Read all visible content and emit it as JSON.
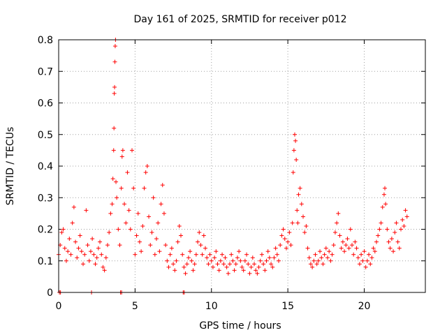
{
  "chart_data": {
    "type": "scatter",
    "title": "Day 161 of 2025, SRMTID for receiver p012",
    "xlabel": "GPS time / hours",
    "ylabel": "SRMTID / TECUs",
    "xlim": [
      0,
      24
    ],
    "ylim": [
      0,
      0.8
    ],
    "xticks": [
      "0",
      "5",
      "10",
      "15",
      "20"
    ],
    "xtick_values": [
      0,
      5,
      10,
      15,
      20
    ],
    "yticks": [
      "0",
      "0.1",
      "0.2",
      "0.3",
      "0.4",
      "0.5",
      "0.6",
      "0.7",
      "0.8"
    ],
    "ytick_values": [
      0,
      0.1,
      0.2,
      0.3,
      0.4,
      0.5,
      0.6,
      0.7,
      0.8
    ],
    "grid": true,
    "marker": "+",
    "series_color": "#ff0000",
    "series": [
      {
        "name": "SRMTID",
        "points": [
          [
            0.0,
            0.12
          ],
          [
            0.1,
            0.15
          ],
          [
            0.2,
            0.19
          ],
          [
            0.3,
            0.2
          ],
          [
            0.4,
            0.14
          ],
          [
            0.5,
            0.1
          ],
          [
            0.6,
            0.13
          ],
          [
            0.7,
            0.17
          ],
          [
            0.8,
            0.12
          ],
          [
            0.9,
            0.22
          ],
          [
            1.0,
            0.27
          ],
          [
            1.1,
            0.16
          ],
          [
            1.2,
            0.11
          ],
          [
            1.3,
            0.14
          ],
          [
            1.4,
            0.18
          ],
          [
            1.5,
            0.13
          ],
          [
            1.6,
            0.09
          ],
          [
            1.7,
            0.12
          ],
          [
            1.8,
            0.26
          ],
          [
            1.9,
            0.15
          ],
          [
            2.0,
            0.1
          ],
          [
            2.1,
            0.13
          ],
          [
            2.2,
            0.17
          ],
          [
            2.3,
            0.12
          ],
          [
            2.4,
            0.09
          ],
          [
            2.5,
            0.11
          ],
          [
            2.6,
            0.14
          ],
          [
            2.7,
            0.16
          ],
          [
            2.8,
            0.12
          ],
          [
            2.9,
            0.08
          ],
          [
            3.0,
            0.07
          ],
          [
            3.1,
            0.11
          ],
          [
            3.2,
            0.15
          ],
          [
            3.3,
            0.19
          ],
          [
            3.4,
            0.25
          ],
          [
            3.5,
            0.28
          ],
          [
            3.55,
            0.36
          ],
          [
            3.6,
            0.45
          ],
          [
            3.62,
            0.52
          ],
          [
            3.64,
            0.63
          ],
          [
            3.66,
            0.65
          ],
          [
            3.68,
            0.73
          ],
          [
            3.7,
            0.78
          ],
          [
            3.72,
            0.8
          ],
          [
            3.75,
            0.35
          ],
          [
            3.8,
            0.3
          ],
          [
            3.9,
            0.2
          ],
          [
            4.0,
            0.15
          ],
          [
            4.1,
            0.33
          ],
          [
            4.15,
            0.43
          ],
          [
            4.2,
            0.45
          ],
          [
            4.3,
            0.28
          ],
          [
            4.4,
            0.22
          ],
          [
            4.5,
            0.38
          ],
          [
            4.6,
            0.26
          ],
          [
            4.7,
            0.2
          ],
          [
            4.8,
            0.45
          ],
          [
            4.9,
            0.33
          ],
          [
            5.0,
            0.12
          ],
          [
            5.1,
            0.18
          ],
          [
            5.2,
            0.25
          ],
          [
            5.3,
            0.16
          ],
          [
            5.4,
            0.13
          ],
          [
            5.5,
            0.21
          ],
          [
            5.6,
            0.33
          ],
          [
            5.7,
            0.38
          ],
          [
            5.8,
            0.4
          ],
          [
            5.9,
            0.24
          ],
          [
            6.0,
            0.15
          ],
          [
            6.1,
            0.19
          ],
          [
            6.2,
            0.3
          ],
          [
            6.3,
            0.12
          ],
          [
            6.4,
            0.17
          ],
          [
            6.5,
            0.22
          ],
          [
            6.6,
            0.13
          ],
          [
            6.7,
            0.28
          ],
          [
            6.8,
            0.34
          ],
          [
            6.9,
            0.25
          ],
          [
            7.0,
            0.15
          ],
          [
            7.1,
            0.1
          ],
          [
            7.2,
            0.08
          ],
          [
            7.3,
            0.12
          ],
          [
            7.4,
            0.14
          ],
          [
            7.5,
            0.09
          ],
          [
            7.6,
            0.07
          ],
          [
            7.7,
            0.1
          ],
          [
            7.8,
            0.16
          ],
          [
            7.9,
            0.21
          ],
          [
            8.0,
            0.18
          ],
          [
            8.1,
            0.12
          ],
          [
            8.2,
            0.08
          ],
          [
            8.3,
            0.06
          ],
          [
            8.4,
            0.09
          ],
          [
            8.5,
            0.11
          ],
          [
            8.6,
            0.13
          ],
          [
            8.7,
            0.1
          ],
          [
            8.8,
            0.07
          ],
          [
            8.9,
            0.09
          ],
          [
            9.0,
            0.12
          ],
          [
            9.1,
            0.16
          ],
          [
            9.2,
            0.19
          ],
          [
            9.3,
            0.15
          ],
          [
            9.4,
            0.12
          ],
          [
            9.5,
            0.18
          ],
          [
            9.6,
            0.14
          ],
          [
            9.7,
            0.11
          ],
          [
            9.8,
            0.09
          ],
          [
            9.9,
            0.12
          ],
          [
            10.0,
            0.1
          ],
          [
            10.1,
            0.08
          ],
          [
            10.2,
            0.11
          ],
          [
            10.3,
            0.13
          ],
          [
            10.4,
            0.09
          ],
          [
            10.5,
            0.07
          ],
          [
            10.6,
            0.1
          ],
          [
            10.7,
            0.12
          ],
          [
            10.8,
            0.09
          ],
          [
            10.9,
            0.11
          ],
          [
            11.0,
            0.08
          ],
          [
            11.1,
            0.06
          ],
          [
            11.2,
            0.09
          ],
          [
            11.3,
            0.12
          ],
          [
            11.4,
            0.1
          ],
          [
            11.5,
            0.07
          ],
          [
            11.6,
            0.09
          ],
          [
            11.7,
            0.11
          ],
          [
            11.8,
            0.13
          ],
          [
            11.9,
            0.1
          ],
          [
            12.0,
            0.08
          ],
          [
            12.1,
            0.07
          ],
          [
            12.2,
            0.1
          ],
          [
            12.3,
            0.12
          ],
          [
            12.4,
            0.09
          ],
          [
            12.5,
            0.06
          ],
          [
            12.6,
            0.08
          ],
          [
            12.7,
            0.11
          ],
          [
            12.8,
            0.09
          ],
          [
            12.9,
            0.07
          ],
          [
            13.0,
            0.06
          ],
          [
            13.1,
            0.08
          ],
          [
            13.2,
            0.1
          ],
          [
            13.3,
            0.12
          ],
          [
            13.4,
            0.09
          ],
          [
            13.5,
            0.07
          ],
          [
            13.6,
            0.1
          ],
          [
            13.7,
            0.13
          ],
          [
            13.8,
            0.11
          ],
          [
            13.9,
            0.09
          ],
          [
            14.0,
            0.08
          ],
          [
            14.1,
            0.11
          ],
          [
            14.2,
            0.14
          ],
          [
            14.3,
            0.12
          ],
          [
            14.4,
            0.1
          ],
          [
            14.5,
            0.15
          ],
          [
            14.6,
            0.18
          ],
          [
            14.7,
            0.2
          ],
          [
            14.8,
            0.17
          ],
          [
            14.9,
            0.14
          ],
          [
            15.0,
            0.16
          ],
          [
            15.1,
            0.19
          ],
          [
            15.2,
            0.15
          ],
          [
            15.3,
            0.22
          ],
          [
            15.35,
            0.38
          ],
          [
            15.4,
            0.45
          ],
          [
            15.45,
            0.5
          ],
          [
            15.5,
            0.48
          ],
          [
            15.55,
            0.42
          ],
          [
            15.6,
            0.26
          ],
          [
            15.65,
            0.22
          ],
          [
            15.7,
            0.31
          ],
          [
            15.8,
            0.33
          ],
          [
            15.9,
            0.28
          ],
          [
            16.0,
            0.24
          ],
          [
            16.1,
            0.19
          ],
          [
            16.2,
            0.21
          ],
          [
            16.3,
            0.14
          ],
          [
            16.4,
            0.11
          ],
          [
            16.5,
            0.09
          ],
          [
            16.6,
            0.08
          ],
          [
            16.7,
            0.1
          ],
          [
            16.8,
            0.12
          ],
          [
            16.9,
            0.09
          ],
          [
            17.0,
            0.1
          ],
          [
            17.1,
            0.13
          ],
          [
            17.2,
            0.11
          ],
          [
            17.3,
            0.09
          ],
          [
            17.4,
            0.12
          ],
          [
            17.5,
            0.14
          ],
          [
            17.6,
            0.11
          ],
          [
            17.7,
            0.13
          ],
          [
            17.8,
            0.1
          ],
          [
            17.9,
            0.12
          ],
          [
            18.0,
            0.15
          ],
          [
            18.1,
            0.19
          ],
          [
            18.2,
            0.22
          ],
          [
            18.3,
            0.25
          ],
          [
            18.4,
            0.18
          ],
          [
            18.5,
            0.14
          ],
          [
            18.6,
            0.16
          ],
          [
            18.7,
            0.13
          ],
          [
            18.8,
            0.15
          ],
          [
            18.9,
            0.17
          ],
          [
            19.0,
            0.14
          ],
          [
            19.1,
            0.2
          ],
          [
            19.2,
            0.15
          ],
          [
            19.3,
            0.12
          ],
          [
            19.4,
            0.16
          ],
          [
            19.5,
            0.14
          ],
          [
            19.6,
            0.11
          ],
          [
            19.7,
            0.09
          ],
          [
            19.8,
            0.12
          ],
          [
            19.9,
            0.1
          ],
          [
            20.0,
            0.13
          ],
          [
            20.1,
            0.08
          ],
          [
            20.2,
            0.1
          ],
          [
            20.3,
            0.12
          ],
          [
            20.4,
            0.09
          ],
          [
            20.5,
            0.11
          ],
          [
            20.6,
            0.14
          ],
          [
            20.7,
            0.13
          ],
          [
            20.8,
            0.16
          ],
          [
            20.9,
            0.18
          ],
          [
            21.0,
            0.2
          ],
          [
            21.1,
            0.22
          ],
          [
            21.2,
            0.27
          ],
          [
            21.3,
            0.31
          ],
          [
            21.35,
            0.33
          ],
          [
            21.4,
            0.28
          ],
          [
            21.5,
            0.2
          ],
          [
            21.6,
            0.16
          ],
          [
            21.7,
            0.14
          ],
          [
            21.8,
            0.17
          ],
          [
            21.9,
            0.13
          ],
          [
            22.0,
            0.19
          ],
          [
            22.1,
            0.22
          ],
          [
            22.2,
            0.16
          ],
          [
            22.3,
            0.14
          ],
          [
            22.4,
            0.2
          ],
          [
            22.5,
            0.23
          ],
          [
            22.6,
            0.21
          ],
          [
            22.7,
            0.26
          ],
          [
            22.8,
            0.24
          ],
          [
            0.05,
            0.0
          ],
          [
            0.12,
            0.0
          ],
          [
            2.15,
            0.0
          ],
          [
            4.05,
            0.0
          ],
          [
            4.12,
            0.0
          ],
          [
            8.15,
            0.0
          ],
          [
            8.22,
            0.0
          ]
        ]
      }
    ]
  }
}
